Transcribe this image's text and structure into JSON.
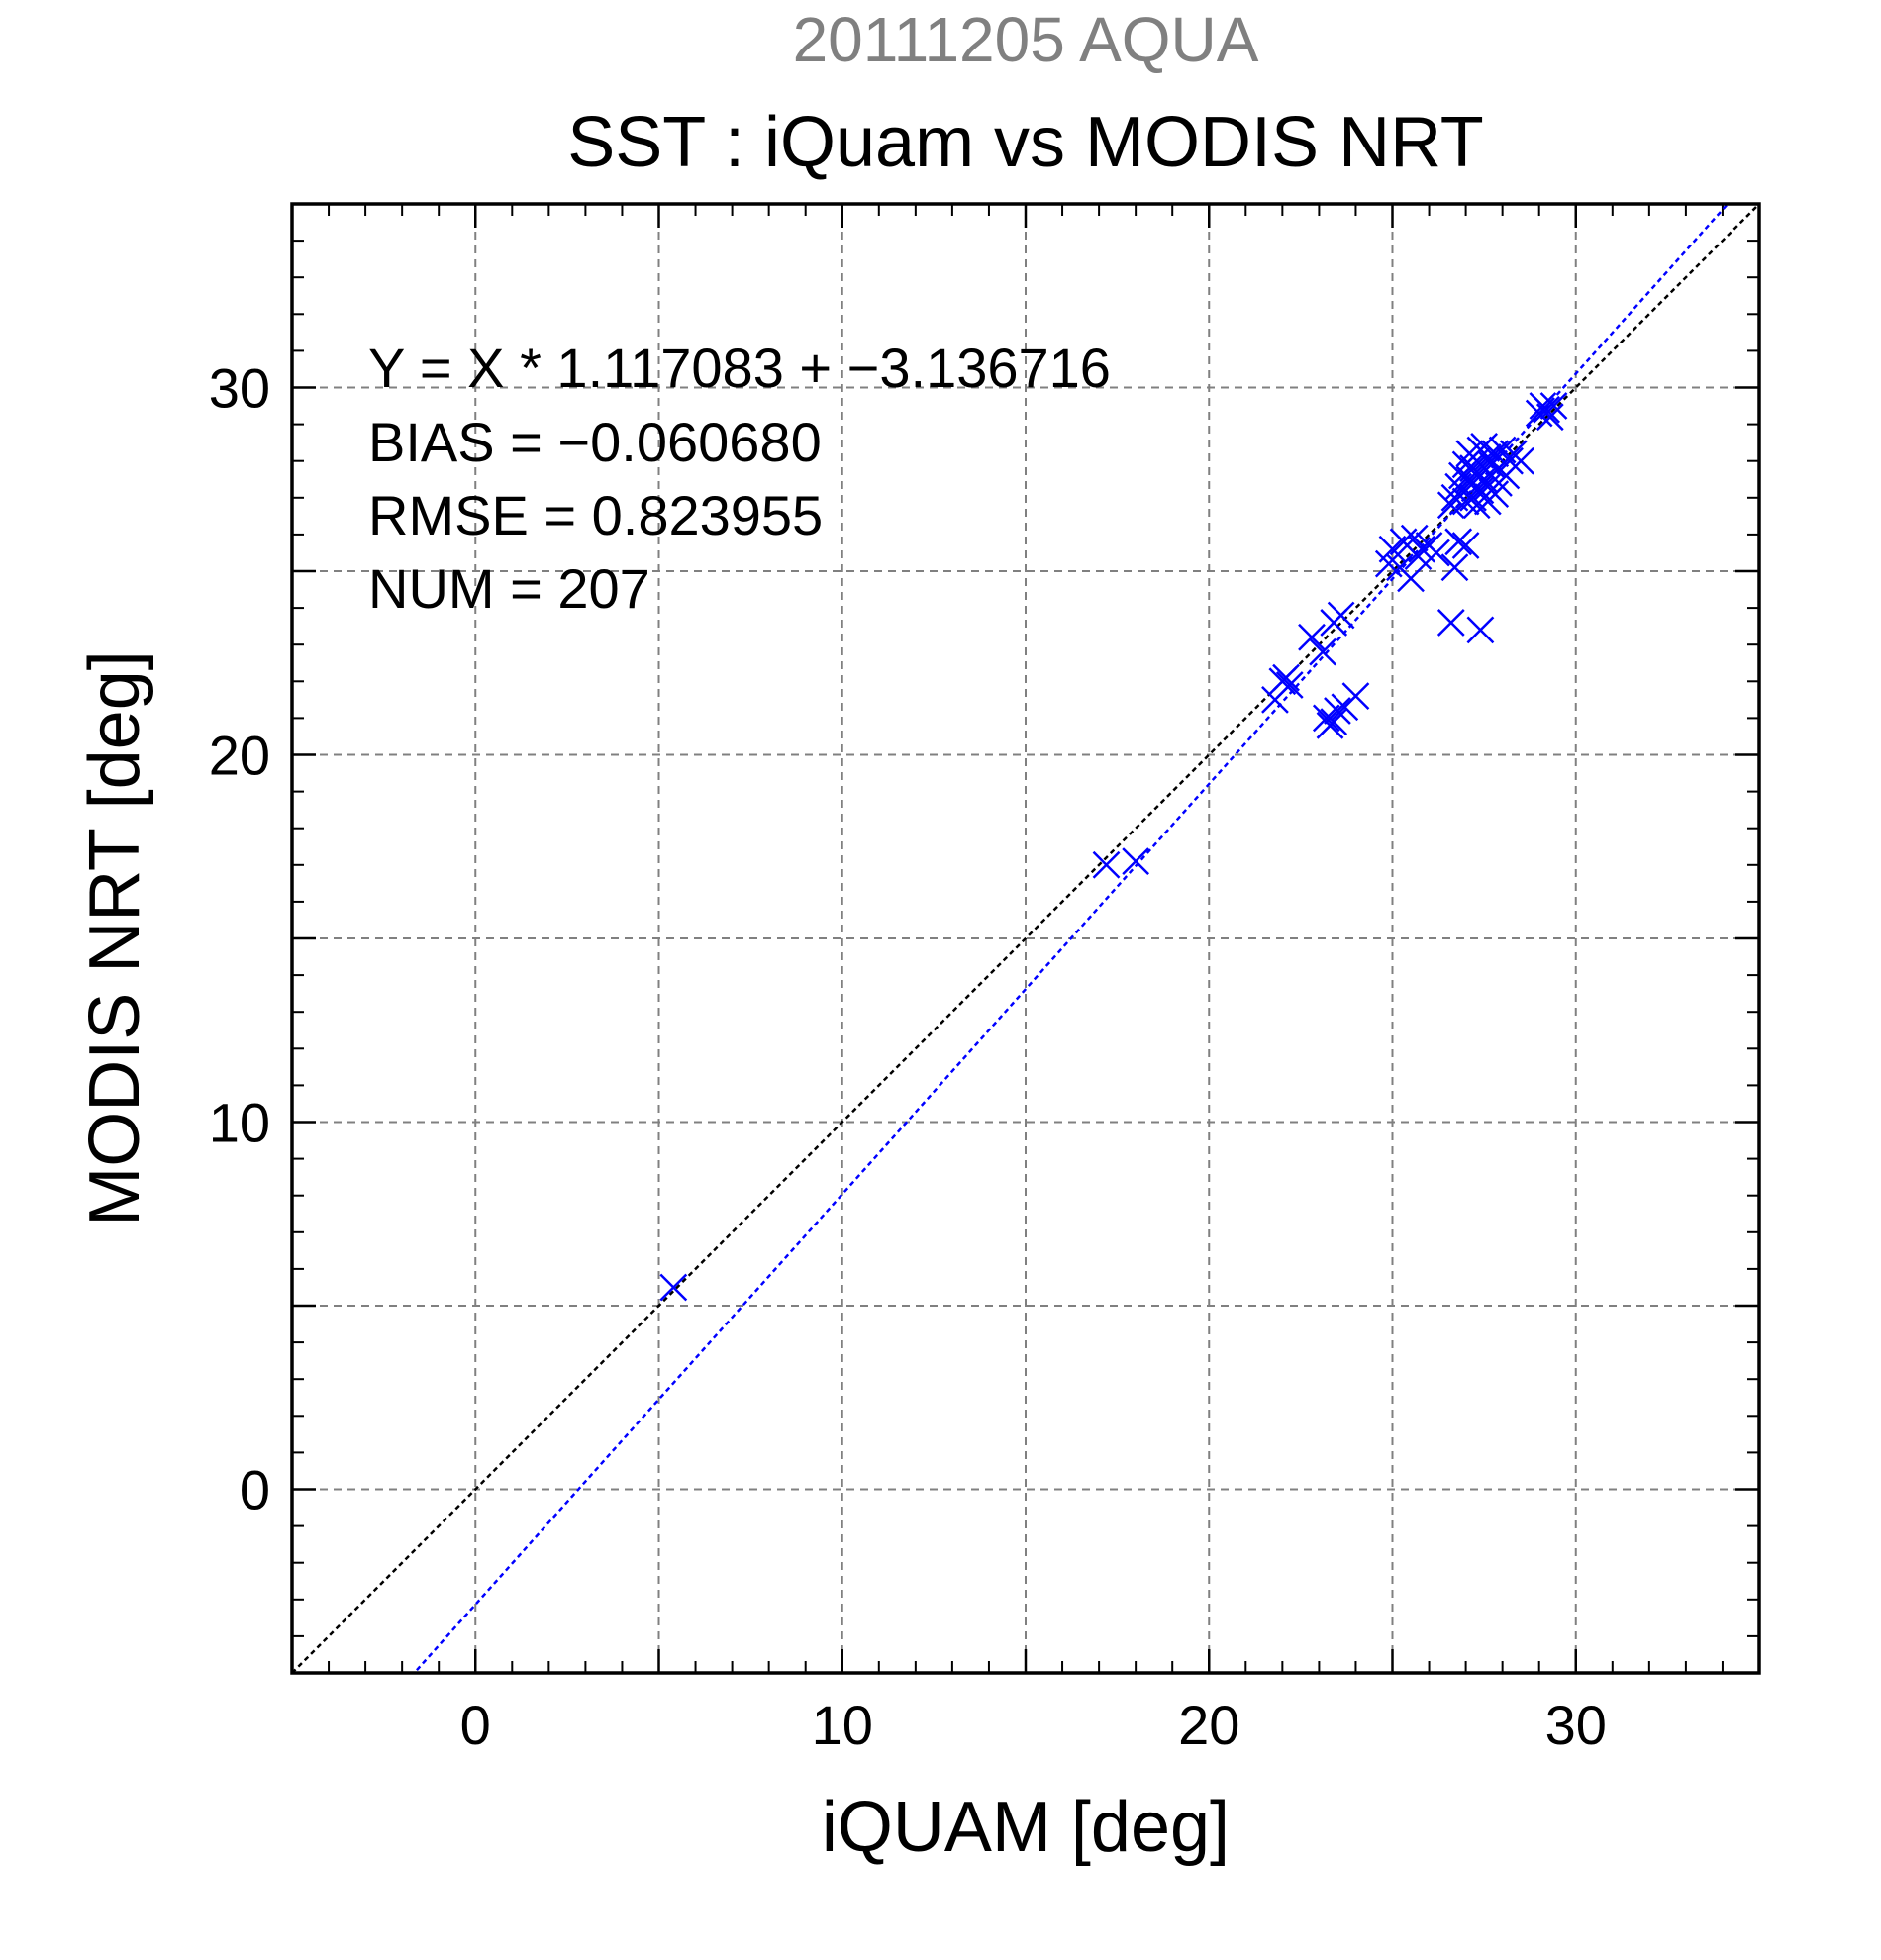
{
  "chart_data": {
    "type": "scatter",
    "title": "SST : iQuam vs MODIS NRT",
    "subtitle": "20111205 AQUA",
    "xlabel": "iQUAM [deg]",
    "ylabel": "MODIS NRT [deg]",
    "xlim": [
      -5,
      35
    ],
    "ylim": [
      -5,
      35
    ],
    "xticks": [
      0,
      10,
      20,
      30
    ],
    "yticks": [
      0,
      10,
      20,
      30
    ],
    "grid": true,
    "annotations": [
      "Y = X * 1.117083 + −3.136716",
      "BIAS = −0.060680",
      "RMSE = 0.823955",
      "NUM = 207"
    ],
    "fit_line": {
      "slope": 1.117083,
      "intercept": -3.136716
    },
    "identity_line": true,
    "colors": {
      "points": "#0000ff",
      "fit": "#0000ff",
      "identity": "#000000",
      "grid": "#808080",
      "subtitle": "#808080",
      "text": "#000000"
    },
    "marker": "x",
    "points": [
      [
        5.4,
        5.5
      ],
      [
        17.2,
        17.0
      ],
      [
        18.0,
        17.1
      ],
      [
        21.8,
        21.5
      ],
      [
        22.0,
        22.0
      ],
      [
        22.1,
        22.1
      ],
      [
        22.2,
        21.9
      ],
      [
        22.8,
        23.2
      ],
      [
        23.1,
        22.8
      ],
      [
        23.3,
        20.8
      ],
      [
        23.2,
        21.0
      ],
      [
        23.4,
        20.9
      ],
      [
        23.5,
        21.2
      ],
      [
        23.6,
        23.8
      ],
      [
        23.4,
        23.6
      ],
      [
        23.7,
        21.3
      ],
      [
        24.0,
        21.6
      ],
      [
        24.9,
        25.2
      ],
      [
        25.0,
        25.6
      ],
      [
        25.2,
        25.1
      ],
      [
        25.3,
        25.8
      ],
      [
        25.5,
        24.8
      ],
      [
        25.6,
        25.9
      ],
      [
        25.7,
        25.4
      ],
      [
        25.8,
        25.6
      ],
      [
        26.0,
        25.7
      ],
      [
        26.2,
        25.5
      ],
      [
        26.6,
        23.6
      ],
      [
        26.7,
        25.1
      ],
      [
        26.8,
        25.8
      ],
      [
        27.0,
        25.7
      ],
      [
        27.4,
        23.4
      ],
      [
        26.6,
        26.8
      ],
      [
        26.7,
        27.0
      ],
      [
        26.8,
        27.3
      ],
      [
        26.9,
        27.6
      ],
      [
        27.0,
        27.9
      ],
      [
        27.1,
        28.2
      ],
      [
        27.2,
        27.0
      ],
      [
        27.2,
        27.4
      ],
      [
        27.3,
        27.7
      ],
      [
        27.3,
        28.0
      ],
      [
        27.4,
        28.3
      ],
      [
        27.4,
        27.2
      ],
      [
        27.5,
        27.5
      ],
      [
        27.5,
        27.8
      ],
      [
        27.6,
        28.1
      ],
      [
        27.6,
        27.3
      ],
      [
        27.7,
        27.6
      ],
      [
        27.7,
        27.9
      ],
      [
        27.8,
        28.2
      ],
      [
        27.8,
        27.1
      ],
      [
        27.9,
        27.4
      ],
      [
        27.9,
        27.8
      ],
      [
        28.0,
        28.3
      ],
      [
        28.1,
        27.6
      ],
      [
        28.2,
        28.0
      ],
      [
        28.3,
        28.2
      ],
      [
        28.5,
        28.0
      ],
      [
        27.0,
        26.9
      ],
      [
        27.1,
        27.5
      ],
      [
        27.3,
        26.8
      ],
      [
        27.6,
        26.9
      ],
      [
        27.2,
        27.8
      ],
      [
        27.5,
        28.4
      ],
      [
        26.9,
        27.2
      ],
      [
        29.0,
        29.3
      ],
      [
        29.1,
        29.5
      ],
      [
        29.2,
        29.4
      ],
      [
        29.3,
        29.2
      ],
      [
        29.4,
        29.5
      ]
    ]
  }
}
